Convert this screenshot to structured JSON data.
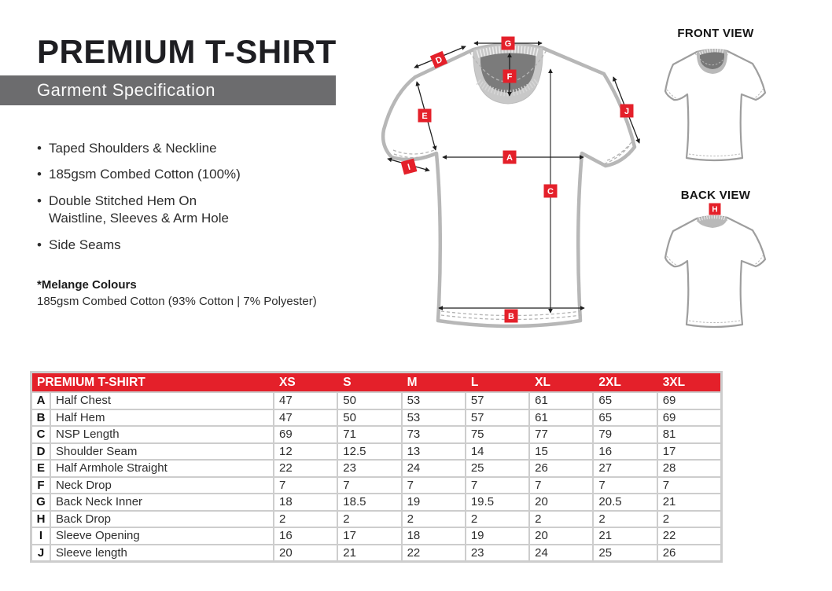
{
  "colors": {
    "accent": "#e4202a",
    "banner": "#6c6c6e",
    "ink": "#1e1e22",
    "body_text": "#2d2d2d",
    "table_frame": "#cdcdcd",
    "shirt_outline": "#b7b7b7",
    "collar_outer": "#c8c8c8",
    "collar_inner": "#7b7b7b"
  },
  "header": {
    "title": "PREMIUM T-SHIRT",
    "subtitle": "Garment Specification"
  },
  "features": [
    "Taped Shoulders & Neckline",
    "185gsm Combed Cotton (100%)",
    "Double Stitched Hem On\nWaistline, Sleeves & Arm Hole",
    "Side Seams"
  ],
  "melange": {
    "title": "*Melange Colours",
    "body": "185gsm Combed Cotton (93% Cotton | 7% Polyester)"
  },
  "views": {
    "front": "FRONT VIEW",
    "back": "BACK VIEW"
  },
  "measures": {
    "a": "A",
    "b": "B",
    "c": "C",
    "d": "D",
    "e": "E",
    "f": "F",
    "g": "G",
    "h": "H",
    "i": "I",
    "j": "J"
  },
  "table": {
    "title": "PREMIUM T-SHIRT",
    "sizes": [
      "XS",
      "S",
      "M",
      "L",
      "XL",
      "2XL",
      "3XL"
    ],
    "rows": [
      {
        "code": "A",
        "label": "Half Chest",
        "values": [
          "47",
          "50",
          "53",
          "57",
          "61",
          "65",
          "69"
        ]
      },
      {
        "code": "B",
        "label": "Half Hem",
        "values": [
          "47",
          "50",
          "53",
          "57",
          "61",
          "65",
          "69"
        ]
      },
      {
        "code": "C",
        "label": "NSP Length",
        "values": [
          "69",
          "71",
          "73",
          "75",
          "77",
          "79",
          "81"
        ]
      },
      {
        "code": "D",
        "label": "Shoulder Seam",
        "values": [
          "12",
          "12.5",
          "13",
          "14",
          "15",
          "16",
          "17"
        ]
      },
      {
        "code": "E",
        "label": "Half Armhole Straight",
        "values": [
          "22",
          "23",
          "24",
          "25",
          "26",
          "27",
          "28"
        ]
      },
      {
        "code": "F",
        "label": "Neck Drop",
        "values": [
          "7",
          "7",
          "7",
          "7",
          "7",
          "7",
          "7"
        ]
      },
      {
        "code": "G",
        "label": "Back Neck Inner",
        "values": [
          "18",
          "18.5",
          "19",
          "19.5",
          "20",
          "20.5",
          "21"
        ]
      },
      {
        "code": "H",
        "label": "Back Drop",
        "values": [
          "2",
          "2",
          "2",
          "2",
          "2",
          "2",
          "2"
        ]
      },
      {
        "code": "I",
        "label": "Sleeve Opening",
        "values": [
          "16",
          "17",
          "18",
          "19",
          "20",
          "21",
          "22"
        ]
      },
      {
        "code": "J",
        "label": "Sleeve length",
        "values": [
          "20",
          "21",
          "22",
          "23",
          "24",
          "25",
          "26"
        ]
      }
    ]
  }
}
